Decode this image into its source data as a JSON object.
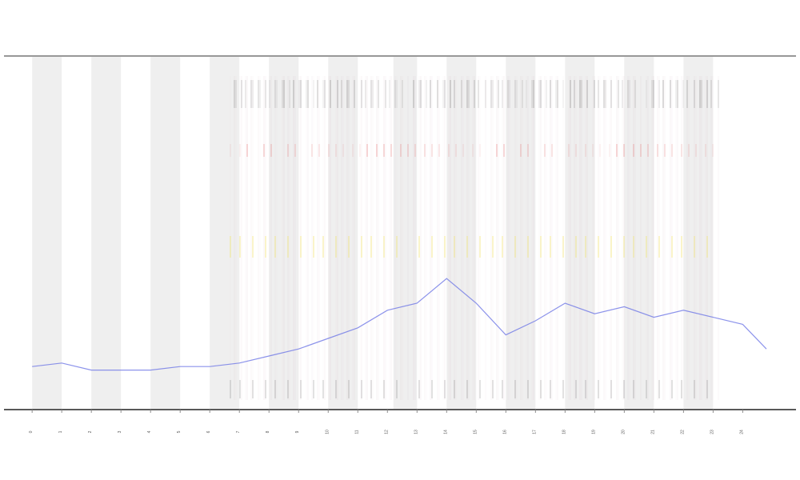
{
  "chart_data": {
    "type": "line",
    "x": [
      0,
      1,
      2,
      2.5,
      3,
      4,
      5,
      6,
      7,
      8,
      9,
      10,
      11,
      12,
      13,
      14,
      15,
      16,
      17,
      18,
      19,
      20,
      21,
      22,
      23,
      24,
      24.8
    ],
    "series": [
      {
        "color": "#6f78e6",
        "values": [
          12,
          13,
          11,
          11,
          11,
          11,
          12,
          12,
          13,
          15,
          17,
          20,
          23,
          28,
          30,
          37,
          30,
          21,
          25,
          30,
          27,
          29,
          26,
          28,
          26,
          24,
          17
        ]
      }
    ],
    "bands": [
      [
        0,
        1
      ],
      [
        2,
        3
      ],
      [
        4,
        5
      ],
      [
        6,
        7
      ],
      [
        8,
        9
      ],
      [
        10,
        11
      ],
      [
        12.2,
        13
      ],
      [
        14,
        15
      ],
      [
        16,
        17
      ],
      [
        18,
        19
      ],
      [
        20,
        21
      ],
      [
        22,
        23
      ]
    ],
    "band_color": "#efefef",
    "xlim": [
      -0.95,
      25.8
    ],
    "ylim": [
      0,
      100
    ],
    "xticks": [
      0,
      1,
      2,
      3,
      4,
      5,
      6,
      7,
      8,
      9,
      10,
      11,
      12,
      13,
      14,
      15,
      16,
      17,
      18,
      19,
      20,
      21,
      22,
      23,
      24
    ]
  }
}
